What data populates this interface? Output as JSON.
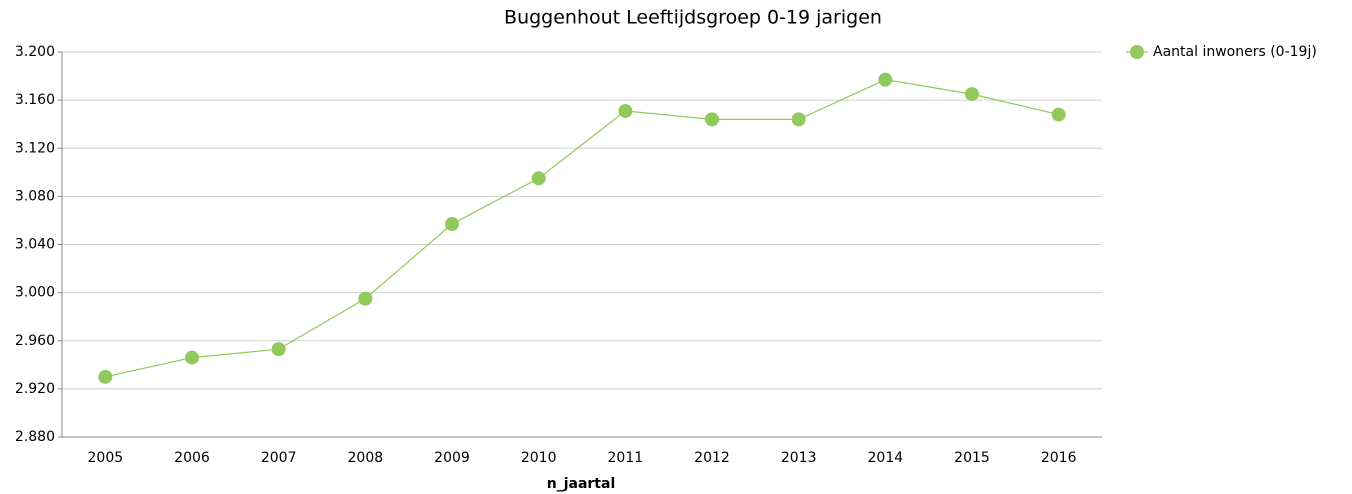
{
  "chart_data": {
    "type": "line",
    "title": "Buggenhout  Leeftijdsgroep 0-19 jarigen",
    "x_label": "n_jaartal",
    "categories": [
      "2005",
      "2006",
      "2007",
      "2008",
      "2009",
      "2010",
      "2011",
      "2012",
      "2013",
      "2014",
      "2015",
      "2016"
    ],
    "series": [
      {
        "name": "Aantal inwoners (0-19j)",
        "color": "#92c95c",
        "values": [
          2930,
          2946,
          2953,
          2995,
          3057,
          3095,
          3151,
          3144,
          3144,
          3177,
          3165,
          3148
        ]
      }
    ],
    "ylim": [
      2880,
      3200
    ],
    "yticks": [
      {
        "value": 2880,
        "label": "2.880"
      },
      {
        "value": 2920,
        "label": "2.920"
      },
      {
        "value": 2960,
        "label": "2.960"
      },
      {
        "value": 3000,
        "label": "3.000"
      },
      {
        "value": 3040,
        "label": "3.040"
      },
      {
        "value": 3080,
        "label": "3.080"
      },
      {
        "value": 3120,
        "label": "3.120"
      },
      {
        "value": 3160,
        "label": "3.160"
      },
      {
        "value": 3200,
        "label": "3.200"
      }
    ],
    "grid": true,
    "legend": "right"
  }
}
